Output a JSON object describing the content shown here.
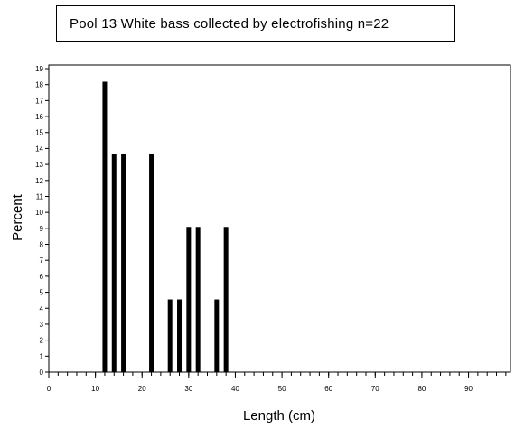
{
  "chart_data": {
    "type": "bar",
    "title": "Pool 13 White bass collected by electrofishing n=22",
    "xlabel": "Length (cm)",
    "ylabel": "Percent",
    "xlim": [
      0,
      99
    ],
    "ylim": [
      0,
      19
    ],
    "x_ticks": [
      0,
      10,
      20,
      30,
      40,
      50,
      60,
      70,
      80,
      90
    ],
    "y_ticks": [
      0,
      1,
      2,
      3,
      4,
      5,
      6,
      7,
      8,
      9,
      10,
      11,
      12,
      13,
      14,
      15,
      16,
      17,
      18,
      19
    ],
    "x_minor_step": 2,
    "grid": false,
    "bar_color": "#000000",
    "x": [
      12,
      14,
      16,
      22,
      26,
      28,
      30,
      32,
      36,
      38
    ],
    "values": [
      18.18,
      13.64,
      13.64,
      13.64,
      4.55,
      4.55,
      9.09,
      9.09,
      4.55,
      9.09
    ]
  }
}
